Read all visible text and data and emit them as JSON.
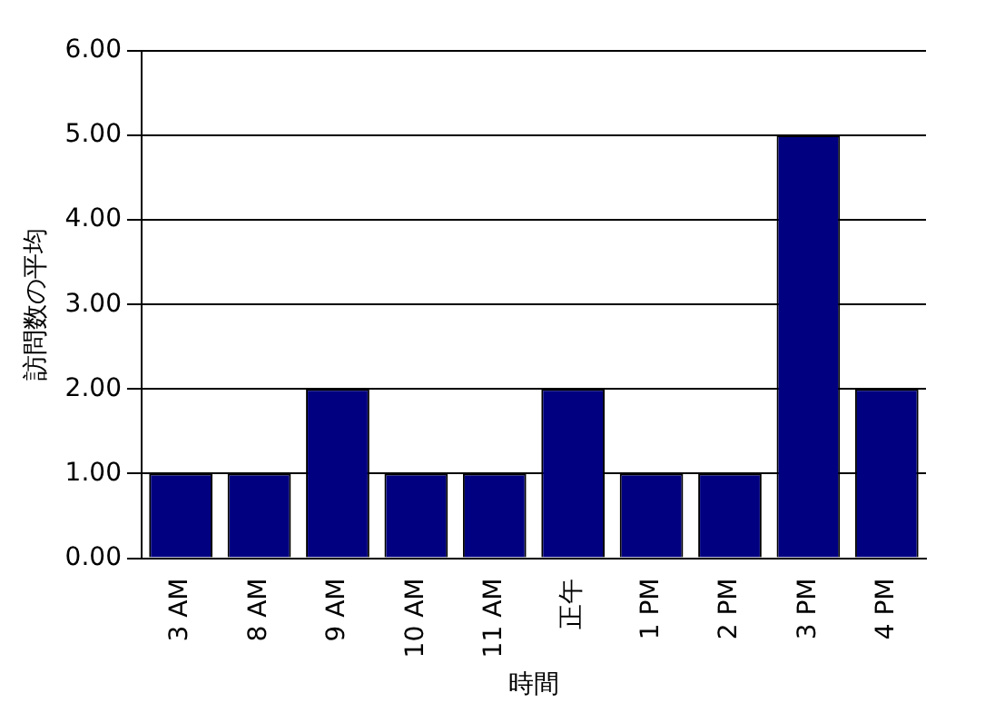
{
  "chart_data": {
    "type": "bar",
    "xlabel": "時間",
    "ylabel": "訪問数の平均",
    "categories": [
      "3 AM",
      "8 AM",
      "9 AM",
      "10 AM",
      "11 AM",
      "正午",
      "1 PM",
      "2 PM",
      "3 PM",
      "4 PM"
    ],
    "values": [
      1,
      1,
      2,
      1,
      1,
      2,
      1,
      1,
      5,
      2
    ],
    "color": "#000080",
    "ylim": [
      0,
      6
    ],
    "yticks": [
      {
        "value": 0,
        "label": "0.00"
      },
      {
        "value": 1,
        "label": "1.00"
      },
      {
        "value": 2,
        "label": "2.00"
      },
      {
        "value": 3,
        "label": "3.00"
      },
      {
        "value": 4,
        "label": "4.00"
      },
      {
        "value": 5,
        "label": "5.00"
      },
      {
        "value": 6,
        "label": "6.00"
      }
    ],
    "grid": "y"
  }
}
